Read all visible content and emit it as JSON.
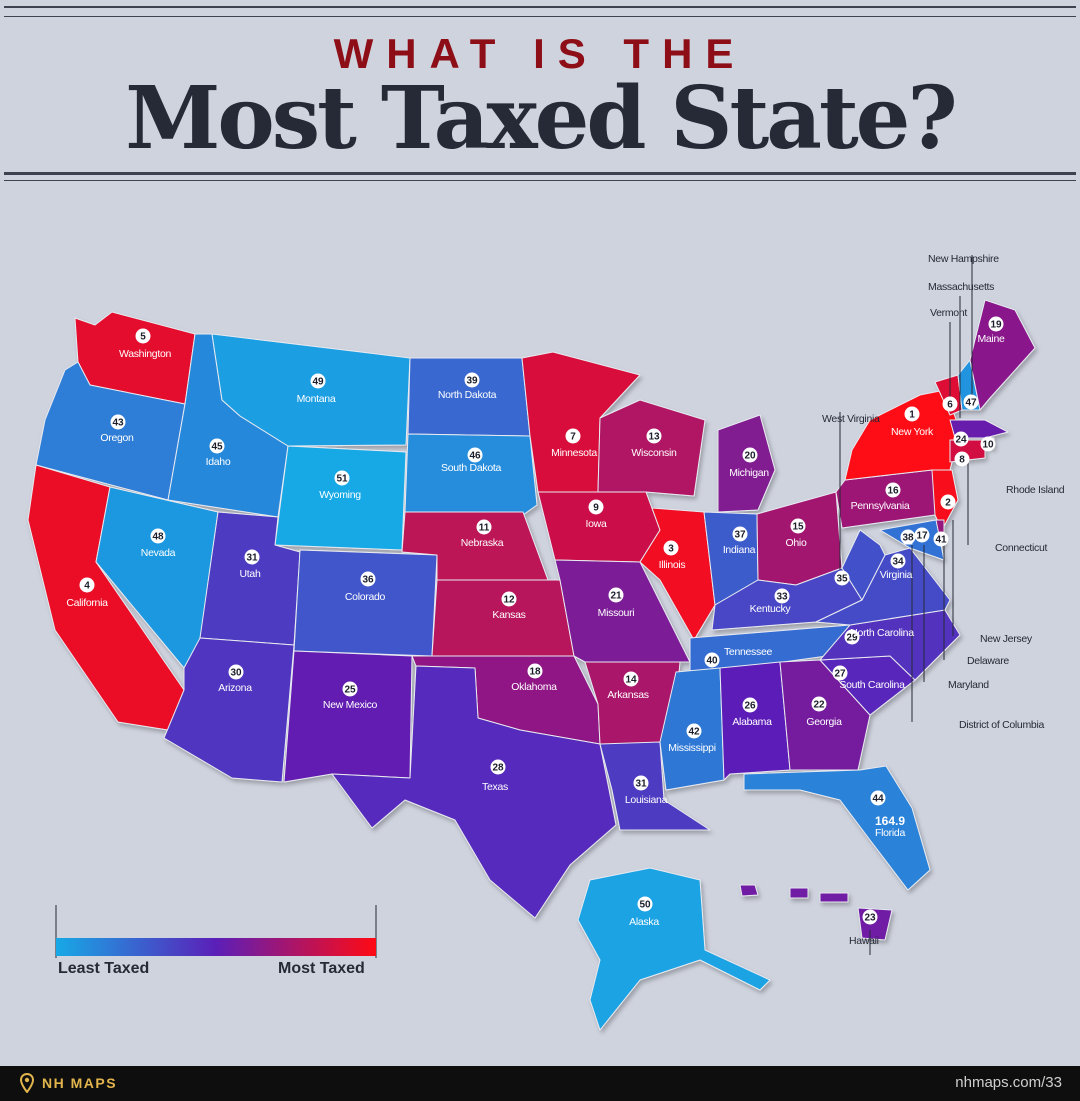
{
  "header": {
    "kicker": "WHAT IS THE",
    "title": "Most Taxed State?"
  },
  "legend": {
    "low_label": "Least Taxed",
    "high_label": "Most Taxed",
    "gradient": [
      "#17a9e6",
      "#5b1fb8",
      "#ff0a14"
    ]
  },
  "colors": {
    "background": "#cfd3de",
    "rule": "#3d4150",
    "kicker": "#8e0e17",
    "title": "#262a37"
  },
  "map": {
    "states": [
      {
        "name": "Washington",
        "rank": 5
      },
      {
        "name": "Oregon",
        "rank": 43
      },
      {
        "name": "California",
        "rank": 4
      },
      {
        "name": "Idaho",
        "rank": 45
      },
      {
        "name": "Nevada",
        "rank": 48
      },
      {
        "name": "Montana",
        "rank": 49
      },
      {
        "name": "Wyoming",
        "rank": 51
      },
      {
        "name": "Utah",
        "rank": 31
      },
      {
        "name": "Arizona",
        "rank": 30
      },
      {
        "name": "Colorado",
        "rank": 36
      },
      {
        "name": "New Mexico",
        "rank": 25
      },
      {
        "name": "North Dakota",
        "rank": 39
      },
      {
        "name": "South Dakota",
        "rank": 46
      },
      {
        "name": "Nebraska",
        "rank": 11
      },
      {
        "name": "Kansas",
        "rank": 12
      },
      {
        "name": "Oklahoma",
        "rank": 18
      },
      {
        "name": "Texas",
        "rank": 28
      },
      {
        "name": "Minnesota",
        "rank": 7
      },
      {
        "name": "Iowa",
        "rank": 9
      },
      {
        "name": "Missouri",
        "rank": 21
      },
      {
        "name": "Arkansas",
        "rank": 14
      },
      {
        "name": "Louisiana",
        "rank": 31
      },
      {
        "name": "Wisconsin",
        "rank": 13
      },
      {
        "name": "Illinois",
        "rank": 3
      },
      {
        "name": "Michigan",
        "rank": 20
      },
      {
        "name": "Indiana",
        "rank": 37
      },
      {
        "name": "Ohio",
        "rank": 15
      },
      {
        "name": "Kentucky",
        "rank": 33
      },
      {
        "name": "Tennessee",
        "rank": 40
      },
      {
        "name": "Mississippi",
        "rank": 42
      },
      {
        "name": "Alabama",
        "rank": 26
      },
      {
        "name": "Georgia",
        "rank": 22
      },
      {
        "name": "Florida",
        "rank": 44,
        "note": "164.9"
      },
      {
        "name": "South Carolina",
        "rank": 27
      },
      {
        "name": "North Carolina",
        "rank": 29
      },
      {
        "name": "Virginia",
        "rank": 34
      },
      {
        "name": "West Virginia",
        "rank": 35
      },
      {
        "name": "Pennsylvania",
        "rank": 16
      },
      {
        "name": "New York",
        "rank": 1
      },
      {
        "name": "Vermont",
        "rank": 6
      },
      {
        "name": "New Hampshire",
        "rank": 47
      },
      {
        "name": "Maine",
        "rank": 19
      },
      {
        "name": "Massachusetts",
        "rank": 24
      },
      {
        "name": "Rhode Island",
        "rank": 10
      },
      {
        "name": "Connecticut",
        "rank": 8
      },
      {
        "name": "New Jersey",
        "rank": 2
      },
      {
        "name": "Delaware",
        "rank": 17
      },
      {
        "name": "Maryland",
        "rank": 41
      },
      {
        "name": "District of Columbia",
        "rank": 38
      },
      {
        "name": "Alaska",
        "rank": 50
      },
      {
        "name": "Hawaii",
        "rank": 23
      }
    ]
  },
  "footer": {
    "brand": "NH MAPS",
    "url": "nhmaps.com/33"
  }
}
